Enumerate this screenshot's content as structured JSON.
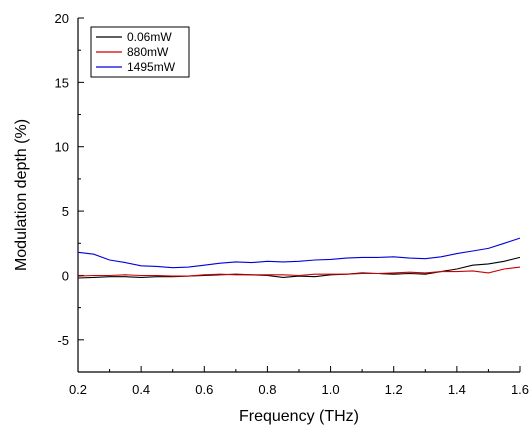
{
  "chart_data": {
    "type": "line",
    "title": "",
    "xlabel": "Frequency (THz)",
    "ylabel": "Modulation depth (%)",
    "xlim": [
      0.2,
      1.6
    ],
    "ylim": [
      -7.5,
      20
    ],
    "x_ticks": [
      "0.2",
      "0.4",
      "0.6",
      "0.8",
      "1.0",
      "1.2",
      "1.4",
      "1.6"
    ],
    "y_ticks": [
      "-5",
      "0",
      "5",
      "10",
      "15",
      "20"
    ],
    "y_tick_values": [
      -5,
      0,
      5,
      10,
      15,
      20
    ],
    "x_tick_values": [
      0.2,
      0.4,
      0.6,
      0.8,
      1.0,
      1.2,
      1.4,
      1.6
    ],
    "grid": false,
    "legend_position": "top-left",
    "x": [
      0.2,
      0.25,
      0.3,
      0.35,
      0.4,
      0.45,
      0.5,
      0.55,
      0.6,
      0.65,
      0.7,
      0.75,
      0.8,
      0.85,
      0.9,
      0.95,
      1.0,
      1.05,
      1.1,
      1.15,
      1.2,
      1.25,
      1.3,
      1.35,
      1.4,
      1.45,
      1.5,
      1.55,
      1.6
    ],
    "series": [
      {
        "name": "0.06mW",
        "color": "#000000",
        "values": [
          -0.2,
          -0.15,
          -0.1,
          -0.1,
          -0.15,
          -0.1,
          -0.1,
          -0.05,
          0.0,
          0.05,
          0.1,
          0.05,
          0.0,
          -0.15,
          -0.05,
          -0.1,
          0.05,
          0.1,
          0.2,
          0.15,
          0.1,
          0.15,
          0.1,
          0.3,
          0.5,
          0.8,
          0.9,
          1.1,
          1.4
        ]
      },
      {
        "name": "880mW",
        "color": "#cc0000",
        "values": [
          -0.05,
          0.0,
          0.0,
          0.05,
          0.0,
          0.0,
          -0.05,
          -0.05,
          0.05,
          0.1,
          0.05,
          0.05,
          0.05,
          0.05,
          0.0,
          0.1,
          0.1,
          0.1,
          0.15,
          0.15,
          0.2,
          0.25,
          0.2,
          0.3,
          0.3,
          0.35,
          0.2,
          0.5,
          0.65
        ]
      },
      {
        "name": "1495mW",
        "color": "#0000dd",
        "values": [
          1.8,
          1.65,
          1.2,
          1.0,
          0.75,
          0.7,
          0.6,
          0.65,
          0.8,
          0.95,
          1.05,
          1.0,
          1.1,
          1.05,
          1.1,
          1.2,
          1.25,
          1.35,
          1.4,
          1.4,
          1.45,
          1.35,
          1.3,
          1.45,
          1.7,
          1.9,
          2.1,
          2.5,
          2.9
        ]
      }
    ]
  }
}
